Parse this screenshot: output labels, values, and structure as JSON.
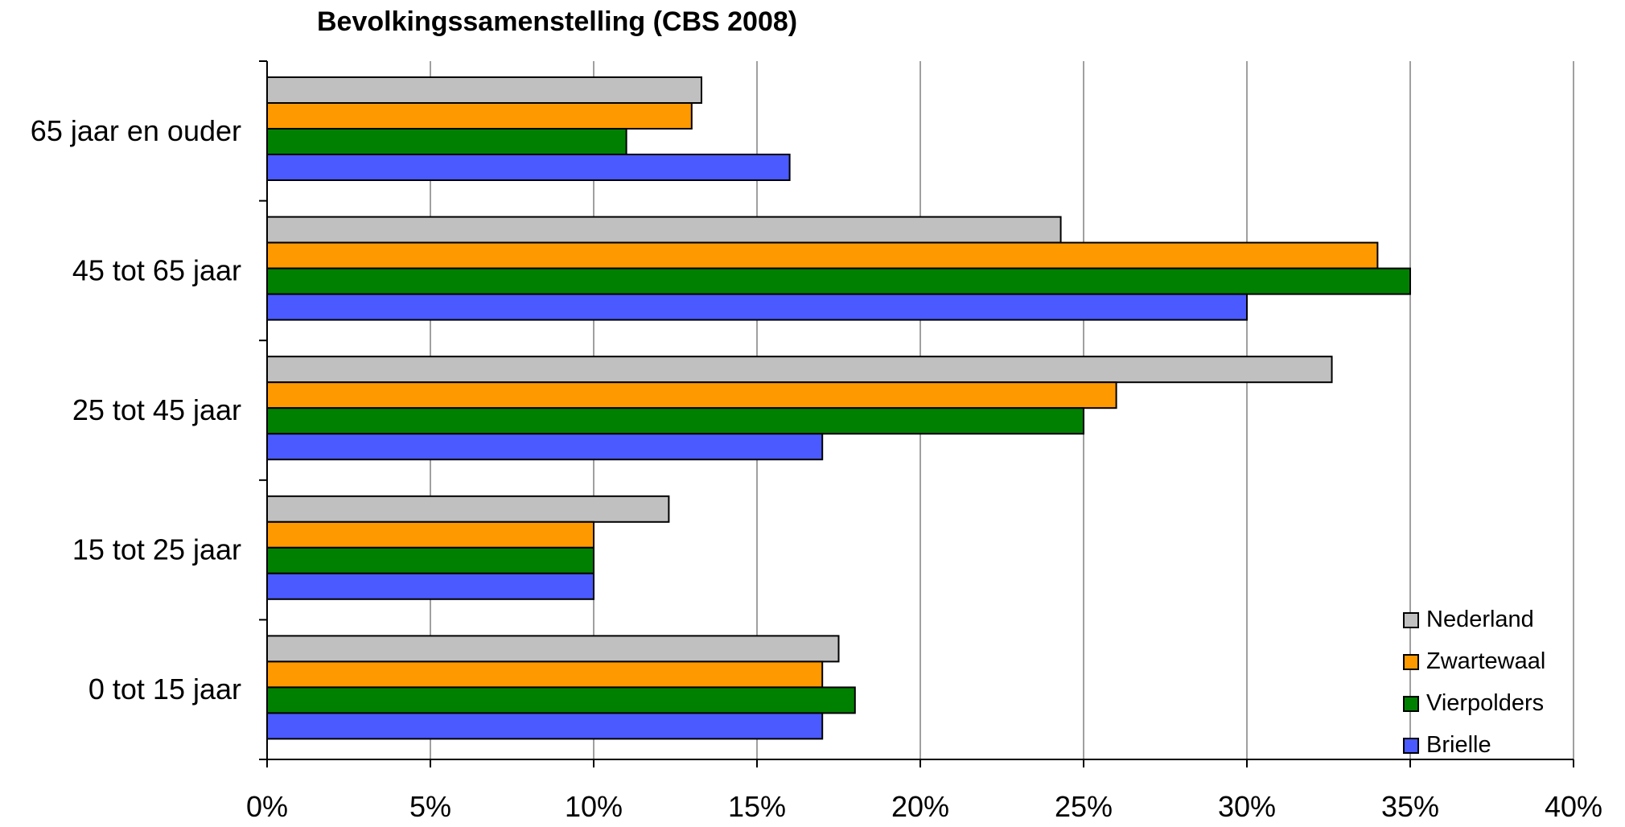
{
  "chart_data": {
    "type": "bar",
    "orientation": "horizontal",
    "title": "Bevolkingssamenstelling (CBS 2008)",
    "xlabel": "",
    "ylabel": "",
    "xlim": [
      0,
      40
    ],
    "x_ticks": [
      "0%",
      "5%",
      "10%",
      "15%",
      "20%",
      "25%",
      "30%",
      "35%",
      "40%"
    ],
    "grid": "vertical",
    "legend_position": "bottom-right",
    "categories": [
      "65 jaar en ouder",
      "45 tot 65 jaar",
      "25 tot 45 jaar",
      "15 tot 25 jaar",
      "0 tot 15 jaar"
    ],
    "series": [
      {
        "name": "Nederland",
        "color": "#c0c0c0",
        "values": [
          13.3,
          24.3,
          32.6,
          12.3,
          17.5
        ]
      },
      {
        "name": "Zwartewaal",
        "color": "#ff9900",
        "values": [
          13.0,
          34.0,
          26.0,
          10.0,
          17.0
        ]
      },
      {
        "name": "Vierpolders",
        "color": "#008000",
        "values": [
          11.0,
          35.0,
          25.0,
          10.0,
          18.0
        ]
      },
      {
        "name": "Brielle",
        "color": "#4a5aff",
        "values": [
          16.0,
          30.0,
          17.0,
          10.0,
          17.0
        ]
      }
    ]
  }
}
